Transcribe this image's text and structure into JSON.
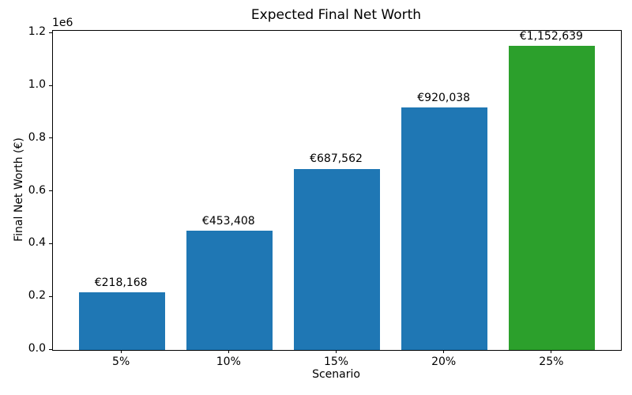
{
  "chart_data": {
    "type": "bar",
    "title": "Expected Final Net Worth",
    "xlabel": "Scenario",
    "ylabel": "Final Net Worth (€)",
    "categories": [
      "5%",
      "10%",
      "15%",
      "20%",
      "25%"
    ],
    "values": [
      218168,
      453408,
      687562,
      920038,
      1152639
    ],
    "bar_labels": [
      "€218,168",
      "€453,408",
      "€687,562",
      "€920,038",
      "€1,152,639"
    ],
    "bar_colors": [
      "#1f77b4",
      "#1f77b4",
      "#1f77b4",
      "#1f77b4",
      "#2ca02c"
    ],
    "ylim": [
      0,
      1210271
    ],
    "yticks": [
      0,
      200000,
      400000,
      600000,
      800000,
      1000000,
      1200000
    ],
    "ytick_labels": [
      "0.0",
      "0.2",
      "0.4",
      "0.6",
      "0.8",
      "1.0",
      "1.2"
    ],
    "y_offset_label": "1e6",
    "grid": false,
    "legend": null,
    "background_color": "#ffffff",
    "text_color": "#000000"
  }
}
